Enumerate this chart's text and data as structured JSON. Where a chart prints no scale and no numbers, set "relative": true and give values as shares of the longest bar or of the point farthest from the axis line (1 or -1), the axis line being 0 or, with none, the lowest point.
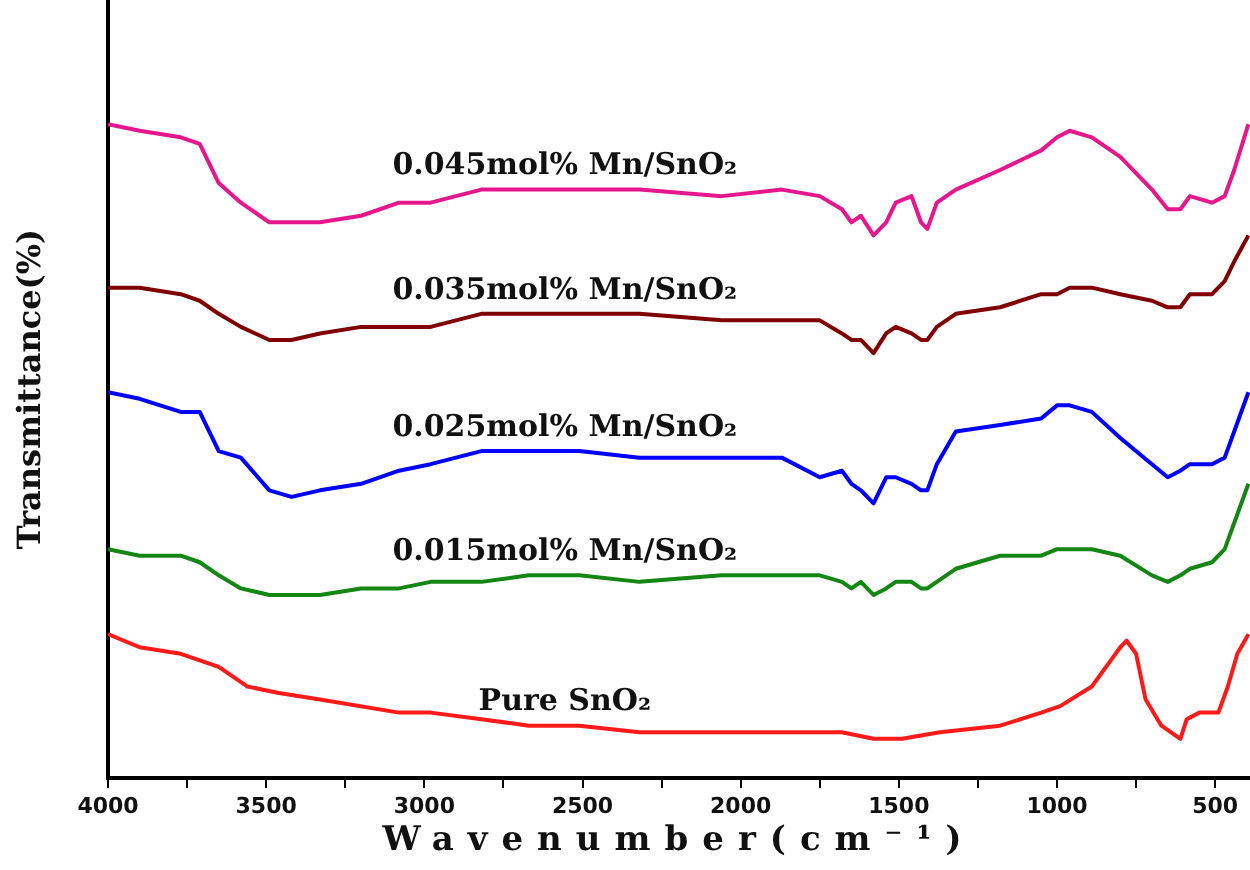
{
  "chart_data": {
    "type": "line",
    "xlabel": "Wavenumber(cm⁻¹)",
    "ylabel": "Transmittance(%)",
    "relative": true,
    "legend": false,
    "grid": false,
    "marker": "none",
    "line_style": "solid",
    "xlim": [
      4000,
      390
    ],
    "xticks": [
      4000,
      {
        "value": 3750,
        "label": null
      },
      3500,
      {
        "value": 3250,
        "label": null
      },
      3000,
      {
        "value": 2750,
        "label": null
      },
      2500,
      {
        "value": 2250,
        "label": null
      },
      2000,
      {
        "value": 1750,
        "label": null
      },
      1500,
      {
        "value": 1250,
        "label": null
      },
      1000,
      {
        "value": 750,
        "label": null
      },
      500
    ],
    "x": [
      4000,
      3900,
      3770,
      3710,
      3650,
      3580,
      3490,
      3420,
      3330,
      3200,
      3080,
      2980,
      2820,
      2670,
      2510,
      2320,
      2060,
      1870,
      1750,
      1680,
      1650,
      1620,
      1580,
      1540,
      1510,
      1460,
      1430,
      1410,
      1380,
      1320,
      1180,
      1050,
      1000,
      960,
      890,
      800,
      700,
      650,
      610,
      580,
      510,
      470,
      440,
      395
    ],
    "series": [
      {
        "name": "0.045mol% Mn/SnO₂",
        "color": "#e6178c",
        "values": [
          1.0,
          0.99,
          0.98,
          0.97,
          0.91,
          0.88,
          0.85,
          0.85,
          0.85,
          0.86,
          0.88,
          0.88,
          0.9,
          0.9,
          0.9,
          0.9,
          0.89,
          0.9,
          0.89,
          0.87,
          0.85,
          0.86,
          0.83,
          0.85,
          0.88,
          0.89,
          0.85,
          0.84,
          0.88,
          0.9,
          0.93,
          0.96,
          0.98,
          0.99,
          0.98,
          0.95,
          0.9,
          0.87,
          0.87,
          0.89,
          0.88,
          0.89,
          0.93,
          1.0
        ]
      },
      {
        "name": "0.035mol% Mn/SnO₂",
        "color": "#800000",
        "values": [
          0.75,
          0.75,
          0.74,
          0.73,
          0.71,
          0.69,
          0.67,
          0.67,
          0.68,
          0.69,
          0.69,
          0.69,
          0.71,
          0.71,
          0.71,
          0.71,
          0.7,
          0.7,
          0.7,
          0.68,
          0.67,
          0.67,
          0.65,
          0.68,
          0.69,
          0.68,
          0.67,
          0.67,
          0.69,
          0.71,
          0.72,
          0.74,
          0.74,
          0.75,
          0.75,
          0.74,
          0.73,
          0.72,
          0.72,
          0.74,
          0.74,
          0.76,
          0.79,
          0.83
        ]
      },
      {
        "name": "0.025mol% Mn/SnO₂",
        "color": "#0000ff",
        "values": [
          0.59,
          0.58,
          0.56,
          0.56,
          0.5,
          0.49,
          0.44,
          0.43,
          0.44,
          0.45,
          0.47,
          0.48,
          0.5,
          0.5,
          0.5,
          0.49,
          0.49,
          0.49,
          0.46,
          0.47,
          0.45,
          0.44,
          0.42,
          0.46,
          0.46,
          0.45,
          0.44,
          0.44,
          0.48,
          0.53,
          0.54,
          0.55,
          0.57,
          0.57,
          0.56,
          0.52,
          0.48,
          0.46,
          0.47,
          0.48,
          0.48,
          0.49,
          0.53,
          0.59
        ]
      },
      {
        "name": "0.015mol% Mn/SnO₂",
        "color": "#138613",
        "values": [
          0.35,
          0.34,
          0.34,
          0.33,
          0.31,
          0.29,
          0.28,
          0.28,
          0.28,
          0.29,
          0.29,
          0.3,
          0.3,
          0.31,
          0.31,
          0.3,
          0.31,
          0.31,
          0.31,
          0.3,
          0.29,
          0.3,
          0.28,
          0.29,
          0.3,
          0.3,
          0.29,
          0.29,
          0.3,
          0.32,
          0.34,
          0.34,
          0.35,
          0.35,
          0.35,
          0.34,
          0.31,
          0.3,
          0.31,
          0.32,
          0.33,
          0.35,
          0.39,
          0.45
        ]
      },
      {
        "name": "Pure SnO₂",
        "color": "#ff1a1a",
        "x": [
          4000,
          3900,
          3770,
          3710,
          3650,
          3560,
          3460,
          3330,
          3080,
          2980,
          2820,
          2670,
          2510,
          2320,
          2060,
          1870,
          1680,
          1580,
          1490,
          1370,
          1180,
          1050,
          990,
          890,
          830,
          800,
          780,
          750,
          720,
          670,
          610,
          590,
          550,
          490,
          460,
          430,
          395
        ],
        "values": [
          0.22,
          0.2,
          0.19,
          0.18,
          0.17,
          0.14,
          0.13,
          0.12,
          0.1,
          0.1,
          0.09,
          0.08,
          0.08,
          0.07,
          0.07,
          0.07,
          0.07,
          0.06,
          0.06,
          0.07,
          0.08,
          0.1,
          0.11,
          0.14,
          0.18,
          0.2,
          0.21,
          0.19,
          0.12,
          0.08,
          0.06,
          0.09,
          0.1,
          0.1,
          0.14,
          0.19,
          0.22
        ]
      }
    ]
  }
}
